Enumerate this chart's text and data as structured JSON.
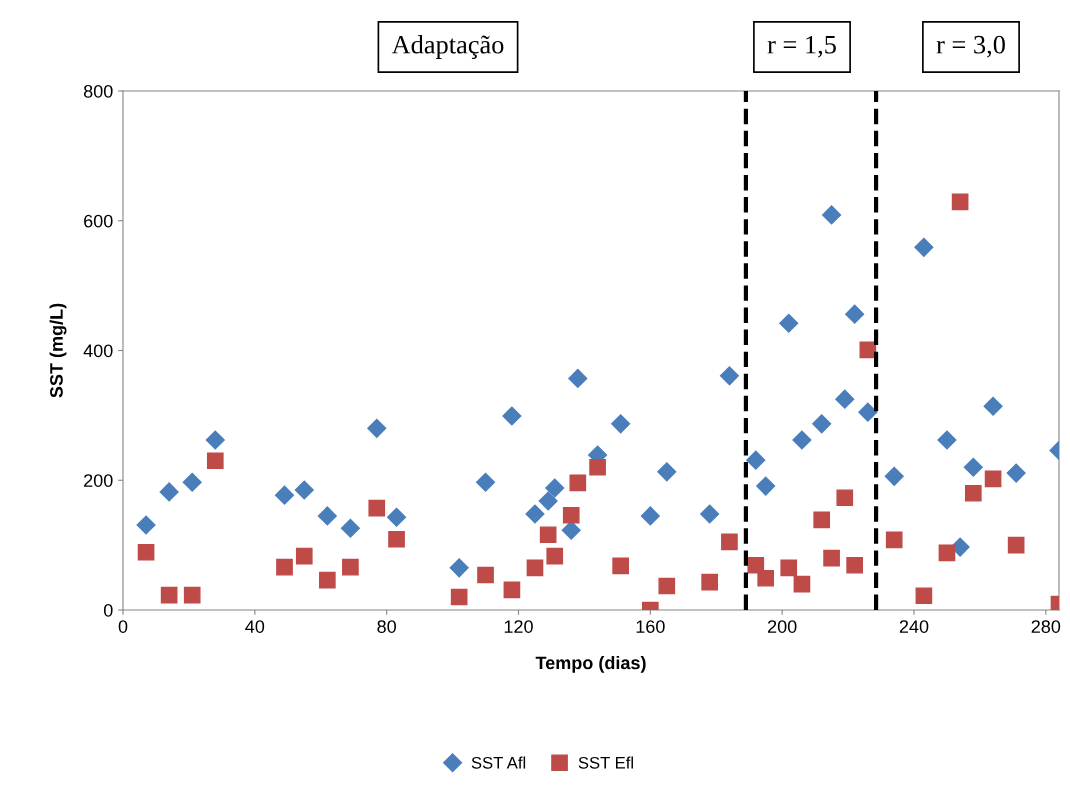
{
  "chart_data": {
    "type": "scatter",
    "xlabel": "Tempo (dias)",
    "ylabel": "SST (mg/L)",
    "xlim": [
      0,
      284
    ],
    "xticks": [
      0,
      40,
      80,
      120,
      160,
      200,
      240,
      280
    ],
    "ylim": [
      0,
      800
    ],
    "yticks": [
      0,
      200,
      400,
      600,
      800
    ],
    "grid": false,
    "legend": "bottom",
    "series": [
      {
        "name": "SST Afl",
        "color": "#4a7ebb",
        "marker": "diamond",
        "x": [
          7,
          14,
          21,
          28,
          49,
          55,
          62,
          69,
          77,
          83,
          102,
          110,
          118,
          125,
          129,
          131,
          136,
          138,
          144,
          151,
          160,
          165,
          178,
          184,
          192,
          195,
          202,
          206,
          212,
          215,
          219,
          222,
          226,
          234,
          243,
          250,
          254,
          258,
          264,
          271,
          284
        ],
        "values": [
          131,
          182,
          197,
          262,
          177,
          185,
          145,
          126,
          280,
          143,
          65,
          197,
          299,
          148,
          168,
          188,
          123,
          357,
          239,
          287,
          145,
          213,
          148,
          361,
          231,
          191,
          442,
          262,
          287,
          609,
          325,
          456,
          305,
          206,
          559,
          262,
          97,
          220,
          314,
          211,
          246
        ]
      },
      {
        "name": "SST Efl",
        "color": "#be4b48",
        "marker": "square",
        "x": [
          7,
          14,
          21,
          28,
          49,
          55,
          62,
          69,
          77,
          83,
          102,
          110,
          118,
          125,
          129,
          131,
          136,
          138,
          144,
          151,
          160,
          165,
          178,
          184,
          192,
          195,
          202,
          206,
          212,
          215,
          219,
          222,
          226,
          234,
          243,
          250,
          254,
          258,
          264,
          271,
          284
        ],
        "values": [
          89,
          23,
          23,
          230,
          66,
          83,
          46,
          66,
          157,
          109,
          20,
          54,
          31,
          65,
          116,
          83,
          146,
          196,
          220,
          68,
          0,
          37,
          43,
          105,
          69,
          49,
          65,
          40,
          139,
          80,
          173,
          69,
          401,
          108,
          22,
          88,
          629,
          180,
          202,
          100,
          9
        ]
      }
    ],
    "ref_lines": [
      {
        "axis": "x",
        "value": 189,
        "color": "#000000",
        "line_style": "dashed"
      },
      {
        "axis": "x",
        "value": 228.5,
        "color": "#000000",
        "line_style": "dashed"
      }
    ],
    "annotations": [
      "Adaptação",
      "r = 1,5",
      "r = 3,0"
    ]
  }
}
